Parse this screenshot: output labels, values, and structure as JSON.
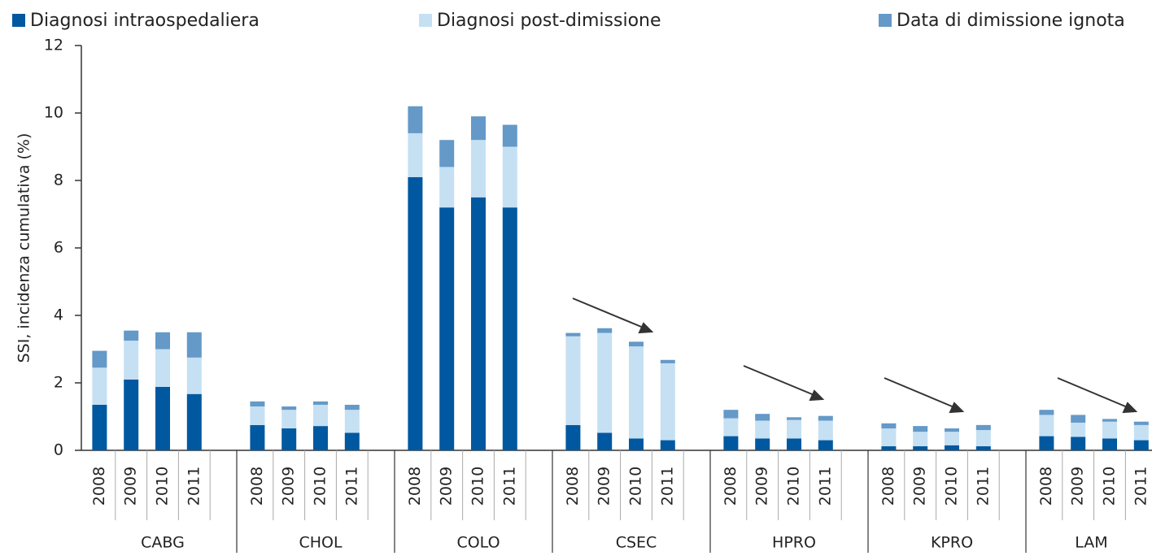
{
  "chart_data": {
    "type": "stacked_bar",
    "y_label": "SSI, incidenza cumulativa (%)",
    "groups": [
      "CABG",
      "CHOL",
      "COLO",
      "CSEC",
      "HPRO",
      "KPRO",
      "LAM"
    ],
    "categories": [
      "2008",
      "2009",
      "2010",
      "2011",
      "2008",
      "2009",
      "2010",
      "2011",
      "2008",
      "2009",
      "2010",
      "2011",
      "2008",
      "2009",
      "2010",
      "2011",
      "2008",
      "2009",
      "2010",
      "2011",
      "2008",
      "2009",
      "2010",
      "2011",
      "2008",
      "2009",
      "2010",
      "2011"
    ],
    "series": [
      {
        "name": "Diagnosi intraospedaliera",
        "color": "#0058a0",
        "values": [
          1.35,
          2.1,
          1.88,
          1.67,
          0.75,
          0.65,
          0.72,
          0.52,
          8.1,
          7.2,
          7.5,
          7.2,
          0.75,
          0.52,
          0.35,
          0.3,
          0.42,
          0.35,
          0.35,
          0.3,
          0.12,
          0.12,
          0.15,
          0.12,
          0.42,
          0.4,
          0.35,
          0.3
        ]
      },
      {
        "name": "Diagnosi post-dimissione",
        "color": "#c5e0f3",
        "values": [
          1.1,
          1.15,
          1.12,
          1.08,
          0.55,
          0.55,
          0.63,
          0.68,
          1.3,
          1.2,
          1.7,
          1.8,
          2.63,
          2.96,
          2.73,
          2.28,
          0.53,
          0.53,
          0.55,
          0.58,
          0.53,
          0.43,
          0.4,
          0.48,
          0.63,
          0.42,
          0.5,
          0.45
        ]
      },
      {
        "name": "Data di dimissione ignota",
        "color": "#6499c8",
        "values": [
          0.5,
          0.3,
          0.5,
          0.75,
          0.15,
          0.1,
          0.1,
          0.15,
          0.8,
          0.8,
          0.7,
          0.65,
          0.1,
          0.14,
          0.14,
          0.1,
          0.25,
          0.2,
          0.08,
          0.14,
          0.15,
          0.17,
          0.1,
          0.15,
          0.15,
          0.23,
          0.08,
          0.1
        ]
      }
    ],
    "ylim": [
      0,
      12
    ],
    "yticks": [
      0,
      2,
      4,
      6,
      8,
      10,
      12
    ]
  }
}
